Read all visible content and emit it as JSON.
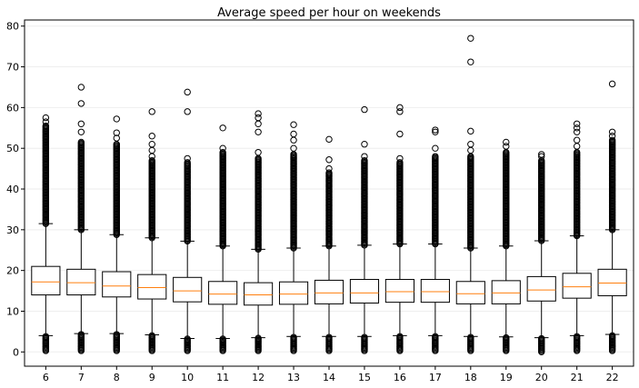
{
  "chart_data": {
    "type": "box",
    "title": "Average speed per hour on weekends",
    "xlabel": "",
    "ylabel": "",
    "categories": [
      "6",
      "7",
      "8",
      "9",
      "10",
      "11",
      "12",
      "13",
      "14",
      "15",
      "16",
      "17",
      "18",
      "19",
      "20",
      "21",
      "22"
    ],
    "ylim": [
      -3.5,
      81.5
    ],
    "yticks": [
      0,
      10,
      20,
      30,
      40,
      50,
      60,
      70,
      80
    ],
    "grid": "horizontal",
    "box_color": "#000000",
    "median_color": "#ff7f0e",
    "grid_color": "#eeeeee",
    "boxes": [
      {
        "label": "6",
        "whislo": 4,
        "q1": 14,
        "med": 17.2,
        "q3": 21,
        "whishi": 31.5,
        "upper_from": 31.5,
        "upper_to": 55.5,
        "fliers": [
          56.5,
          57.5
        ],
        "lower_from": 0.3,
        "lower_to": 3.8
      },
      {
        "label": "7",
        "whislo": 4.5,
        "q1": 14,
        "med": 17,
        "q3": 20.3,
        "whishi": 30,
        "upper_from": 30,
        "upper_to": 51.5,
        "fliers": [
          54,
          56,
          61,
          65
        ],
        "lower_from": 0.3,
        "lower_to": 4.3
      },
      {
        "label": "8",
        "whislo": 4.5,
        "q1": 13.5,
        "med": 16.2,
        "q3": 19.7,
        "whishi": 28.8,
        "upper_from": 28.8,
        "upper_to": 51,
        "fliers": [
          52.5,
          53.8,
          57.2
        ],
        "lower_from": 0.3,
        "lower_to": 4.3
      },
      {
        "label": "9",
        "whislo": 4.2,
        "q1": 13,
        "med": 15.8,
        "q3": 19,
        "whishi": 28,
        "upper_from": 28,
        "upper_to": 47,
        "fliers": [
          48,
          49.5,
          51,
          53,
          59
        ],
        "lower_from": 0.3,
        "lower_to": 4
      },
      {
        "label": "10",
        "whislo": 3.3,
        "q1": 12.3,
        "med": 15,
        "q3": 18.3,
        "whishi": 27.2,
        "upper_from": 27.2,
        "upper_to": 46.5,
        "fliers": [
          47.5,
          59,
          63.8
        ],
        "lower_from": 0.3,
        "lower_to": 3.2
      },
      {
        "label": "11",
        "whislo": 3.3,
        "q1": 11.7,
        "med": 14.2,
        "q3": 17.3,
        "whishi": 26,
        "upper_from": 26,
        "upper_to": 49,
        "fliers": [
          50,
          55
        ],
        "lower_from": 0.3,
        "lower_to": 3.2
      },
      {
        "label": "12",
        "whislo": 3.5,
        "q1": 11.5,
        "med": 14,
        "q3": 17,
        "whishi": 25.2,
        "upper_from": 25.2,
        "upper_to": 47.5,
        "fliers": [
          49,
          54,
          56,
          57.5,
          58.5
        ],
        "lower_from": 0.3,
        "lower_to": 3.4
      },
      {
        "label": "13",
        "whislo": 3.8,
        "q1": 11.7,
        "med": 14.2,
        "q3": 17.2,
        "whishi": 25.5,
        "upper_from": 25.5,
        "upper_to": 48.5,
        "fliers": [
          50,
          52,
          53.5,
          55.8
        ],
        "lower_from": 0.3,
        "lower_to": 3.6
      },
      {
        "label": "14",
        "whislo": 3.8,
        "q1": 11.8,
        "med": 14.5,
        "q3": 17.6,
        "whishi": 26,
        "upper_from": 26,
        "upper_to": 44,
        "fliers": [
          45,
          47.2,
          52.2
        ],
        "lower_from": 0.3,
        "lower_to": 3.6
      },
      {
        "label": "15",
        "whislo": 3.8,
        "q1": 12,
        "med": 14.5,
        "q3": 17.8,
        "whishi": 26.2,
        "upper_from": 26.2,
        "upper_to": 47,
        "fliers": [
          48,
          51,
          59.5
        ],
        "lower_from": 0.3,
        "lower_to": 3.6
      },
      {
        "label": "16",
        "whislo": 4,
        "q1": 12.2,
        "med": 14.8,
        "q3": 17.8,
        "whishi": 26.5,
        "upper_from": 26.5,
        "upper_to": 46.5,
        "fliers": [
          47.5,
          53.5,
          59,
          60
        ],
        "lower_from": 0.3,
        "lower_to": 3.8
      },
      {
        "label": "17",
        "whislo": 4,
        "q1": 12.2,
        "med": 14.8,
        "q3": 17.8,
        "whishi": 26.5,
        "upper_from": 26.5,
        "upper_to": 48,
        "fliers": [
          50,
          54,
          54.5
        ],
        "lower_from": 0.3,
        "lower_to": 3.8
      },
      {
        "label": "18",
        "whislo": 3.8,
        "q1": 11.8,
        "med": 14.3,
        "q3": 17.3,
        "whishi": 25.5,
        "upper_from": 25.5,
        "upper_to": 48,
        "fliers": [
          49.5,
          51,
          54.2,
          71.2,
          77
        ],
        "lower_from": 0.3,
        "lower_to": 3.6
      },
      {
        "label": "19",
        "whislo": 3.7,
        "q1": 11.8,
        "med": 14.5,
        "q3": 17.5,
        "whishi": 26,
        "upper_from": 26,
        "upper_to": 49,
        "fliers": [
          50.5,
          51.5
        ],
        "lower_from": 0.3,
        "lower_to": 3.5
      },
      {
        "label": "20",
        "whislo": 3.5,
        "q1": 12.5,
        "med": 15.2,
        "q3": 18.5,
        "whishi": 27.3,
        "upper_from": 27.3,
        "upper_to": 47,
        "fliers": [
          48,
          48.5
        ],
        "lower_from": 0,
        "lower_to": 3.3
      },
      {
        "label": "21",
        "whislo": 4,
        "q1": 13.2,
        "med": 16,
        "q3": 19.3,
        "whishi": 28.5,
        "upper_from": 28.5,
        "upper_to": 49,
        "fliers": [
          50.5,
          52,
          54,
          55,
          56
        ],
        "lower_from": 0.3,
        "lower_to": 3.8
      },
      {
        "label": "22",
        "whislo": 4.3,
        "q1": 13.8,
        "med": 16.9,
        "q3": 20.3,
        "whishi": 30,
        "upper_from": 30,
        "upper_to": 52,
        "fliers": [
          53,
          54,
          65.8
        ],
        "lower_from": 0.3,
        "lower_to": 4
      }
    ]
  }
}
